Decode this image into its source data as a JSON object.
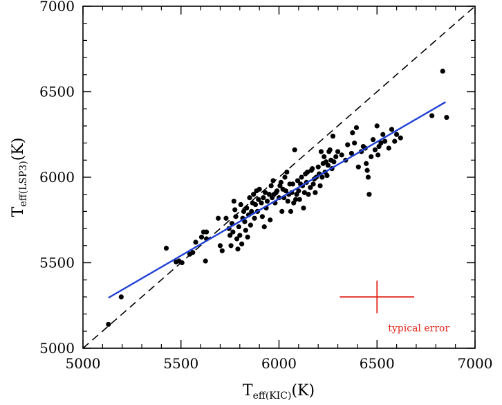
{
  "chart_data": {
    "type": "scatter",
    "title": "",
    "xlabel": {
      "main": "T",
      "sub": "eff(KIC)",
      "unit": "(K)"
    },
    "ylabel": {
      "main": "T",
      "sub": "eff(LSP3)",
      "unit": "(K)"
    },
    "xlim": [
      5000,
      7000
    ],
    "ylim": [
      5000,
      7000
    ],
    "x_ticks": [
      5000,
      5500,
      6000,
      6500,
      7000
    ],
    "y_ticks": [
      5000,
      5500,
      6000,
      6500,
      7000
    ],
    "x_tick_labels": [
      "5000",
      "5500",
      "6000",
      "6500",
      "7000"
    ],
    "y_tick_labels": [
      "5000",
      "5500",
      "6000",
      "6500",
      "7000"
    ],
    "grid": false,
    "series": [
      {
        "kind": "points",
        "color": "#000000",
        "points": [
          [
            5130,
            5140
          ],
          [
            5195,
            5300
          ],
          [
            5425,
            5585
          ],
          [
            5475,
            5505
          ],
          [
            5490,
            5510
          ],
          [
            5505,
            5500
          ],
          [
            5545,
            5550
          ],
          [
            5560,
            5560
          ],
          [
            5575,
            5620
          ],
          [
            5605,
            5650
          ],
          [
            5615,
            5680
          ],
          [
            5630,
            5680
          ],
          [
            5630,
            5640
          ],
          [
            5625,
            5510
          ],
          [
            5690,
            5760
          ],
          [
            5700,
            5600
          ],
          [
            5710,
            5570
          ],
          [
            5730,
            5760
          ],
          [
            5745,
            5700
          ],
          [
            5750,
            5660
          ],
          [
            5755,
            5600
          ],
          [
            5760,
            5730
          ],
          [
            5765,
            5680
          ],
          [
            5770,
            5860
          ],
          [
            5775,
            5810
          ],
          [
            5780,
            5770
          ],
          [
            5785,
            5640
          ],
          [
            5790,
            5580
          ],
          [
            5795,
            5710
          ],
          [
            5800,
            5660
          ],
          [
            5805,
            5840
          ],
          [
            5810,
            5610
          ],
          [
            5815,
            5760
          ],
          [
            5820,
            5800
          ],
          [
            5825,
            5740
          ],
          [
            5830,
            5690
          ],
          [
            5835,
            5820
          ],
          [
            5840,
            5650
          ],
          [
            5845,
            5780
          ],
          [
            5850,
            5880
          ],
          [
            5855,
            5720
          ],
          [
            5860,
            5800
          ],
          [
            5865,
            5850
          ],
          [
            5870,
            5900
          ],
          [
            5875,
            5760
          ],
          [
            5880,
            5840
          ],
          [
            5885,
            5920
          ],
          [
            5890,
            5800
          ],
          [
            5895,
            5870
          ],
          [
            5900,
            5930
          ],
          [
            5910,
            5850
          ],
          [
            5915,
            5770
          ],
          [
            5920,
            5880
          ],
          [
            5925,
            5710
          ],
          [
            5930,
            5910
          ],
          [
            5935,
            5820
          ],
          [
            5940,
            5860
          ],
          [
            5950,
            5900
          ],
          [
            5955,
            5750
          ],
          [
            5960,
            5950
          ],
          [
            5965,
            5880
          ],
          [
            5970,
            5980
          ],
          [
            5975,
            5900
          ],
          [
            5980,
            5850
          ],
          [
            5985,
            5910
          ],
          [
            5990,
            5920
          ],
          [
            6000,
            5880
          ],
          [
            6005,
            5950
          ],
          [
            6010,
            5970
          ],
          [
            6015,
            5800
          ],
          [
            6020,
            5930
          ],
          [
            6025,
            5880
          ],
          [
            6030,
            6000
          ],
          [
            6035,
            5920
          ],
          [
            6040,
            6030
          ],
          [
            6045,
            5860
          ],
          [
            6050,
            5900
          ],
          [
            6055,
            5960
          ],
          [
            6060,
            5800
          ],
          [
            6065,
            5910
          ],
          [
            6070,
            5960
          ],
          [
            6075,
            5850
          ],
          [
            6080,
            6160
          ],
          [
            6085,
            5870
          ],
          [
            6090,
            5900
          ],
          [
            6095,
            5980
          ],
          [
            6100,
            5920
          ],
          [
            6105,
            5870
          ],
          [
            6110,
            5960
          ],
          [
            6115,
            6000
          ],
          [
            6120,
            5950
          ],
          [
            6125,
            5820
          ],
          [
            6130,
            5910
          ],
          [
            6135,
            6020
          ],
          [
            6140,
            5970
          ],
          [
            6145,
            6030
          ],
          [
            6150,
            5900
          ],
          [
            6160,
            5940
          ],
          [
            6165,
            6040
          ],
          [
            6170,
            6050
          ],
          [
            6175,
            5960
          ],
          [
            6180,
            5990
          ],
          [
            6185,
            5910
          ],
          [
            6190,
            6000
          ],
          [
            6200,
            6060
          ],
          [
            6205,
            6020
          ],
          [
            6210,
            5950
          ],
          [
            6215,
            6150
          ],
          [
            6220,
            6000
          ],
          [
            6225,
            6080
          ],
          [
            6230,
            6120
          ],
          [
            6235,
            6030
          ],
          [
            6240,
            6090
          ],
          [
            6245,
            6010
          ],
          [
            6250,
            6070
          ],
          [
            6255,
            6150
          ],
          [
            6260,
            6160
          ],
          [
            6265,
            6100
          ],
          [
            6270,
            6050
          ],
          [
            6275,
            6240
          ],
          [
            6280,
            6090
          ],
          [
            6290,
            6120
          ],
          [
            6300,
            6150
          ],
          [
            6320,
            6130
          ],
          [
            6340,
            6100
          ],
          [
            6350,
            6190
          ],
          [
            6370,
            6140
          ],
          [
            6375,
            6260
          ],
          [
            6385,
            6200
          ],
          [
            6395,
            6290
          ],
          [
            6405,
            6060
          ],
          [
            6420,
            6150
          ],
          [
            6430,
            6180
          ],
          [
            6440,
            6170
          ],
          [
            6445,
            6080
          ],
          [
            6450,
            6040
          ],
          [
            6455,
            6000
          ],
          [
            6460,
            5900
          ],
          [
            6470,
            6120
          ],
          [
            6480,
            6220
          ],
          [
            6490,
            6160
          ],
          [
            6500,
            6300
          ],
          [
            6505,
            6130
          ],
          [
            6510,
            6180
          ],
          [
            6520,
            6200
          ],
          [
            6530,
            6250
          ],
          [
            6540,
            6210
          ],
          [
            6560,
            6170
          ],
          [
            6575,
            6280
          ],
          [
            6590,
            6210
          ],
          [
            6600,
            6250
          ],
          [
            6620,
            6230
          ],
          [
            6780,
            6360
          ],
          [
            6835,
            6620
          ],
          [
            6855,
            6350
          ]
        ]
      },
      {
        "kind": "fit-line",
        "color": "#1f3fd6",
        "style": "solid",
        "from": [
          5130,
          5295
        ],
        "to": [
          6850,
          6440
        ]
      },
      {
        "kind": "one-to-one",
        "color": "#000000",
        "style": "dashed",
        "from": [
          5000,
          5000
        ],
        "to": [
          7000,
          7000
        ]
      }
    ],
    "error_bar": {
      "label": "typical error",
      "color": "#e0281e",
      "center": [
        6500,
        5300
      ],
      "x_halfwidth": 190,
      "y_halfwidth": 95
    }
  }
}
